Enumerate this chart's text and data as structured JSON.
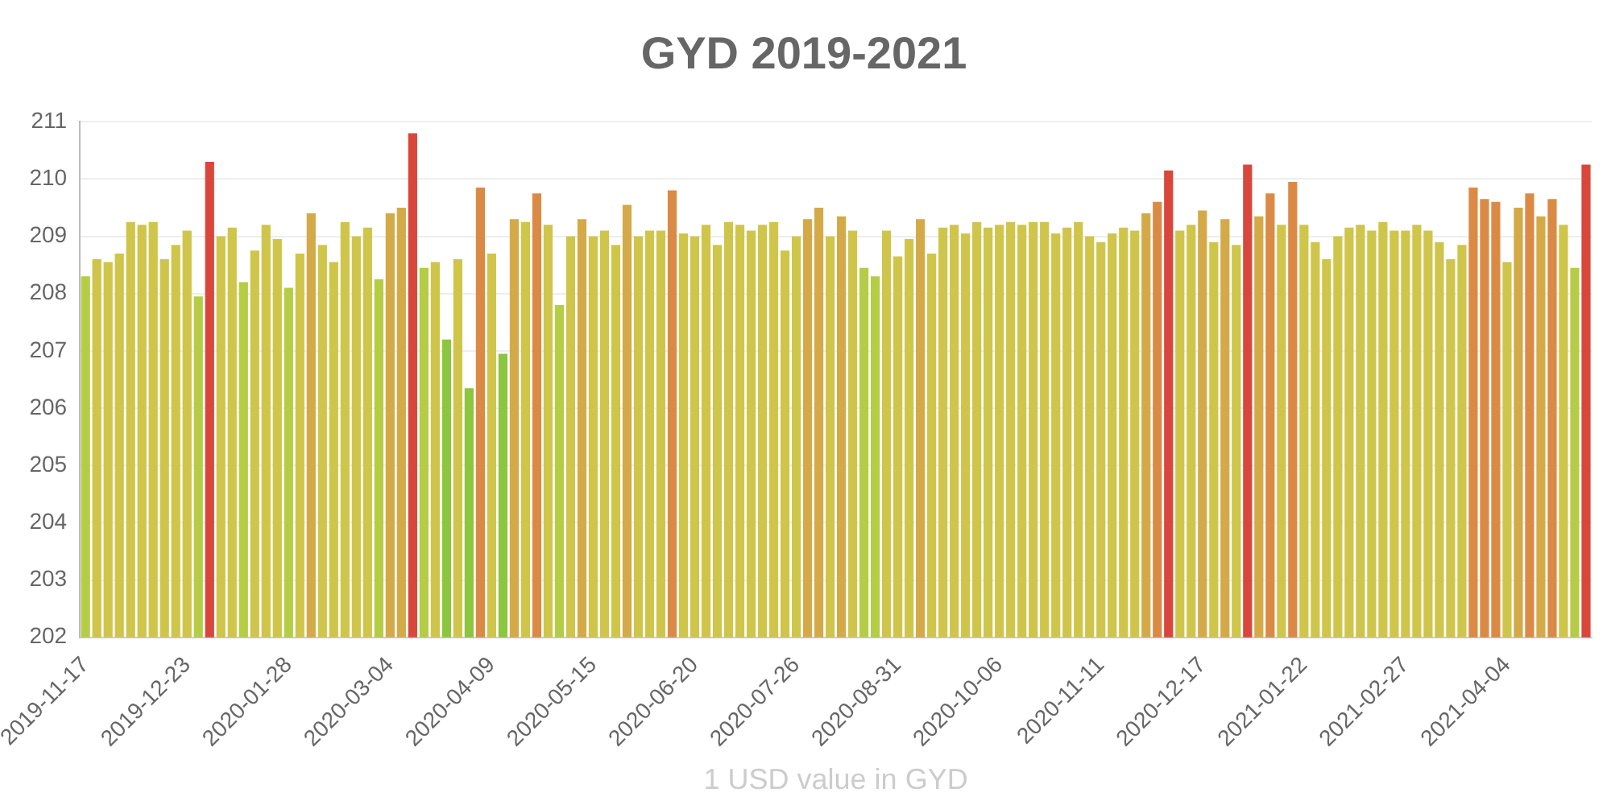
{
  "chart_data": {
    "type": "bar",
    "title": "GYD 2019-2021",
    "xlabel": "1 USD value in GYD",
    "categories": [
      "2019-11-17",
      null,
      null,
      null,
      null,
      null,
      null,
      null,
      null,
      "2019-12-23",
      null,
      null,
      null,
      null,
      null,
      null,
      null,
      null,
      "2020-01-28",
      null,
      null,
      null,
      null,
      null,
      null,
      null,
      null,
      "2020-03-04",
      null,
      null,
      null,
      null,
      null,
      null,
      null,
      null,
      "2020-04-09",
      null,
      null,
      null,
      null,
      null,
      null,
      null,
      null,
      "2020-05-15",
      null,
      null,
      null,
      null,
      null,
      null,
      null,
      null,
      "2020-06-20",
      null,
      null,
      null,
      null,
      null,
      null,
      null,
      null,
      "2020-07-26",
      null,
      null,
      null,
      null,
      null,
      null,
      null,
      null,
      "2020-08-31",
      null,
      null,
      null,
      null,
      null,
      null,
      null,
      null,
      "2020-10-06",
      null,
      null,
      null,
      null,
      null,
      null,
      null,
      null,
      "2020-11-11",
      null,
      null,
      null,
      null,
      null,
      null,
      null,
      null,
      "2020-12-17",
      null,
      null,
      null,
      null,
      null,
      null,
      null,
      null,
      "2021-01-22",
      null,
      null,
      null,
      null,
      null,
      null,
      null,
      null,
      "2021-02-27",
      null,
      null,
      null,
      null,
      null,
      null,
      null,
      null,
      "2021-04-04",
      null,
      null,
      null,
      null,
      null,
      null,
      null
    ],
    "values": [
      208.3,
      208.6,
      208.55,
      208.7,
      209.25,
      209.2,
      209.25,
      208.6,
      208.85,
      209.1,
      207.95,
      210.3,
      209.0,
      209.15,
      208.2,
      208.75,
      209.2,
      208.95,
      208.1,
      208.7,
      209.4,
      208.85,
      208.55,
      209.25,
      209.0,
      209.15,
      208.25,
      209.4,
      209.5,
      210.8,
      208.45,
      208.55,
      207.2,
      208.6,
      206.35,
      209.85,
      208.7,
      206.95,
      209.3,
      209.25,
      209.75,
      209.2,
      207.8,
      209.0,
      209.3,
      209.0,
      209.1,
      208.85,
      209.55,
      209.0,
      209.1,
      209.1,
      209.8,
      209.05,
      209.0,
      209.2,
      208.85,
      209.25,
      209.2,
      209.1,
      209.2,
      209.25,
      208.75,
      209.0,
      209.3,
      209.5,
      209.0,
      209.35,
      209.1,
      208.45,
      208.3,
      209.1,
      208.65,
      208.95,
      209.3,
      208.7,
      209.15,
      209.2,
      209.05,
      209.25,
      209.15,
      209.2,
      209.25,
      209.2,
      209.25,
      209.25,
      209.05,
      209.15,
      209.25,
      209.0,
      208.9,
      209.05,
      209.15,
      209.1,
      209.4,
      209.6,
      210.15,
      209.1,
      209.2,
      209.45,
      208.9,
      209.3,
      208.85,
      210.25,
      209.35,
      209.75,
      209.2,
      209.95,
      209.2,
      208.9,
      208.6,
      209.0,
      209.15,
      209.2,
      209.1,
      209.25,
      209.1,
      209.1,
      209.2,
      209.1,
      208.9,
      208.6,
      208.85,
      209.85,
      209.65,
      209.6,
      208.55,
      209.5,
      209.75,
      209.35,
      209.65,
      209.2,
      208.45,
      210.25
    ],
    "colors": [
      "#b5cc45",
      "#cfc54a",
      "#cfc54a",
      "#cfc54a",
      "#cfc54a",
      "#cfc54a",
      "#cfc54a",
      "#cfc54a",
      "#cfc54a",
      "#cfc54a",
      "#b5cc45",
      "#d9463c",
      "#cfc54a",
      "#cfc54a",
      "#b5cc45",
      "#cfc54a",
      "#cfc54a",
      "#cfc54a",
      "#b5cc45",
      "#cfc54a",
      "#d4aa48",
      "#cfc54a",
      "#cfc54a",
      "#cfc54a",
      "#cfc54a",
      "#cfc54a",
      "#b5cc45",
      "#d4aa48",
      "#d4aa48",
      "#d9463c",
      "#b5cc45",
      "#cfc54a",
      "#8cc63f",
      "#cfc54a",
      "#8cc63f",
      "#db8a45",
      "#cfc54a",
      "#8cc63f",
      "#d4aa48",
      "#cfc54a",
      "#db8a45",
      "#cfc54a",
      "#b5cc45",
      "#cfc54a",
      "#d4aa48",
      "#cfc54a",
      "#cfc54a",
      "#cfc54a",
      "#d4aa48",
      "#cfc54a",
      "#cfc54a",
      "#cfc54a",
      "#db8a45",
      "#cfc54a",
      "#cfc54a",
      "#cfc54a",
      "#cfc54a",
      "#cfc54a",
      "#cfc54a",
      "#cfc54a",
      "#cfc54a",
      "#cfc54a",
      "#cfc54a",
      "#cfc54a",
      "#d4aa48",
      "#d4aa48",
      "#cfc54a",
      "#d4aa48",
      "#cfc54a",
      "#b5cc45",
      "#b5cc45",
      "#cfc54a",
      "#cfc54a",
      "#cfc54a",
      "#d4aa48",
      "#cfc54a",
      "#cfc54a",
      "#cfc54a",
      "#cfc54a",
      "#cfc54a",
      "#cfc54a",
      "#cfc54a",
      "#cfc54a",
      "#cfc54a",
      "#cfc54a",
      "#cfc54a",
      "#cfc54a",
      "#cfc54a",
      "#cfc54a",
      "#cfc54a",
      "#cfc54a",
      "#cfc54a",
      "#cfc54a",
      "#cfc54a",
      "#d4aa48",
      "#db8a45",
      "#d9463c",
      "#cfc54a",
      "#cfc54a",
      "#d4aa48",
      "#cfc54a",
      "#d4aa48",
      "#cfc54a",
      "#d9463c",
      "#d4aa48",
      "#db8a45",
      "#cfc54a",
      "#db8a45",
      "#cfc54a",
      "#cfc54a",
      "#cfc54a",
      "#cfc54a",
      "#cfc54a",
      "#cfc54a",
      "#cfc54a",
      "#cfc54a",
      "#cfc54a",
      "#cfc54a",
      "#cfc54a",
      "#cfc54a",
      "#cfc54a",
      "#cfc54a",
      "#cfc54a",
      "#db8a45",
      "#db8a45",
      "#db8a45",
      "#cfc54a",
      "#d4aa48",
      "#db8a45",
      "#d4aa48",
      "#db8a45",
      "#cfc54a",
      "#b5cc45",
      "#d9463c"
    ],
    "ylim": [
      202,
      211
    ],
    "yticks": [
      202,
      203,
      204,
      205,
      206,
      207,
      208,
      209,
      210,
      211
    ],
    "grid": "y",
    "legend": false
  }
}
